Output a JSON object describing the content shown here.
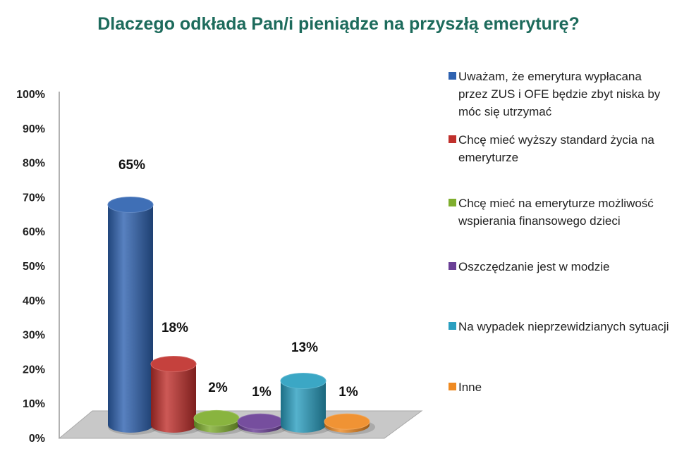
{
  "chart_data": {
    "type": "bar",
    "title": "Dlaczego odkłada Pan/i pieniądze na przyszłą emeryturę?",
    "xlabel": "",
    "ylabel": "",
    "ylim": [
      0,
      100
    ],
    "yticks": [
      "0%",
      "10%",
      "20%",
      "30%",
      "40%",
      "50%",
      "60%",
      "70%",
      "80%",
      "90%",
      "100%"
    ],
    "grid": false,
    "legend_position": "right",
    "style": "3d-cylinder",
    "series": [
      {
        "name": "Uważam, że emerytura wypłacana przez ZUS i OFE będzie zbyt niska by móc się utrzymać",
        "value": 65,
        "label": "65%",
        "color": "#2e62b0"
      },
      {
        "name": "Chcę mieć wyższy standard życia na emeryturze",
        "value": 18,
        "label": "18%",
        "color": "#c0302c"
      },
      {
        "name": "Chcę mieć na emeryturze możliwość wspierania finansowego dzieci",
        "value": 2,
        "label": "2%",
        "color": "#7fae2e"
      },
      {
        "name": "Oszczędzanie jest w modzie",
        "value": 1,
        "label": "1%",
        "color": "#6a3f96"
      },
      {
        "name": "Na wypadek nieprzewidzianych sytuacji",
        "value": 13,
        "label": "13%",
        "color": "#2a9fc0"
      },
      {
        "name": "Inne",
        "value": 1,
        "label": "1%",
        "color": "#ef8a22"
      }
    ]
  }
}
